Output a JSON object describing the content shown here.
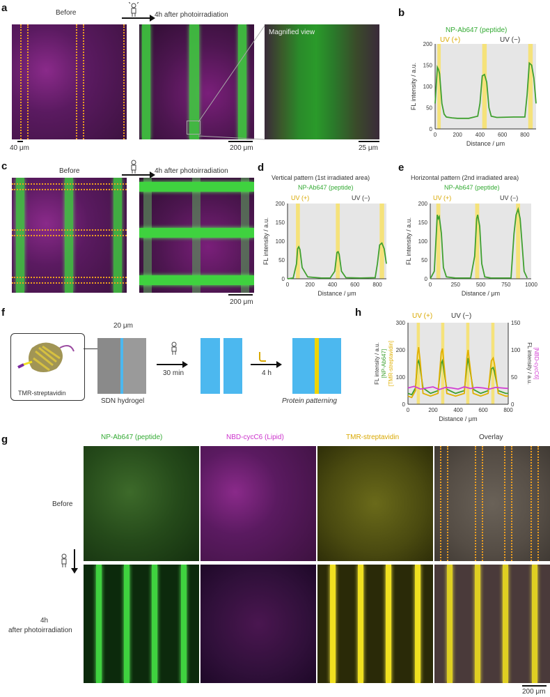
{
  "panels": {
    "a": {
      "label": "a",
      "before": "Before",
      "after": "4h after photoirradiation",
      "magnified": "Magnified view",
      "scale1": "40 μm",
      "scale2": "200 μm",
      "scale3": "25 μm"
    },
    "b": {
      "label": "b",
      "series_title": "NP-Ab647 (peptide)",
      "uv_plus": "UV (+)",
      "uv_minus": "UV (−)",
      "ylabel": "FL intensity / a.u.",
      "xlabel": "Distance / μm"
    },
    "c": {
      "label": "c",
      "before": "Before",
      "after": "4h after photoirradiation",
      "scale": "200 μm"
    },
    "d": {
      "label": "d",
      "title": "Vertical pattern (1st irradiated area)",
      "series_title": "NP-Ab647 (peptide)",
      "uv_plus": "UV (+)",
      "uv_minus": "UV (−)",
      "ylabel": "FL intensity / a.u.",
      "xlabel": "Distance / μm"
    },
    "e": {
      "label": "e",
      "title": "Horizontal pattern (2nd irradiated area)",
      "series_title": "NP-Ab647 (peptide)",
      "uv_plus": "UV (+)",
      "uv_minus": "UV (−)",
      "ylabel": "FL intensity / a.u.",
      "xlabel": "Distance / μm"
    },
    "f": {
      "label": "f",
      "protein": "TMR-streptavidin",
      "width": "20 μm",
      "hydrogel": "SDN hydrogel",
      "time1": "30 min",
      "time2": "4 h",
      "result": "Protein patterning"
    },
    "h": {
      "label": "h",
      "uv_plus": "UV (+)",
      "uv_minus": "UV (−)",
      "ylabel_left": "FL intensity / a.u.",
      "ylabel_left_sub1": "[NP-Ab647]",
      "ylabel_left_sub2": "[TMR-streptavidin]",
      "ylabel_right": "FL intensity / a.u.",
      "ylabel_right_sub": "[NBD-cycC6]",
      "xlabel": "Distance / μm"
    },
    "g": {
      "label": "g",
      "col1": "NP-Ab647 (peptide)",
      "col2": "NBD-cycC6 (Lipid)",
      "col3": "TMR-streptavidin",
      "col4": "Overlay",
      "row1": "Before",
      "row2a": "4h",
      "row2b": "after photoirradiation",
      "scale": "200 μm"
    }
  },
  "colors": {
    "green": "#3fa02f",
    "uv_band": "#f5e27a",
    "shade": "#e6e6e6",
    "yellow": "#e0b000",
    "magenta": "#d23cd2",
    "blue_gel": "#4cb8ef"
  },
  "chart_data": [
    {
      "panel": "b",
      "type": "line",
      "series": [
        {
          "name": "NP-Ab647 (peptide)",
          "x": [
            0,
            20,
            30,
            40,
            60,
            80,
            100,
            150,
            200,
            300,
            380,
            400,
            420,
            440,
            460,
            480,
            500,
            550,
            700,
            800,
            820,
            840,
            860,
            880,
            900
          ],
          "y": [
            60,
            145,
            140,
            130,
            60,
            35,
            28,
            26,
            25,
            25,
            30,
            60,
            125,
            128,
            110,
            50,
            30,
            27,
            28,
            28,
            80,
            155,
            150,
            120,
            60
          ]
        }
      ],
      "xlim": [
        0,
        900
      ],
      "ylim": [
        0,
        200
      ],
      "xticks": [
        0,
        200,
        400,
        600,
        800
      ],
      "yticks": [
        0,
        50,
        100,
        150,
        200
      ],
      "uv_bands": [
        [
          20,
          50
        ],
        [
          420,
          460
        ],
        [
          830,
          870
        ]
      ]
    },
    {
      "panel": "d",
      "type": "line",
      "series": [
        {
          "name": "NP-Ab647 (peptide)",
          "x": [
            0,
            50,
            80,
            90,
            100,
            110,
            130,
            180,
            300,
            380,
            420,
            440,
            450,
            460,
            480,
            520,
            650,
            780,
            800,
            820,
            840,
            860,
            870,
            880
          ],
          "y": [
            0,
            2,
            40,
            80,
            85,
            78,
            30,
            5,
            2,
            2,
            20,
            70,
            72,
            65,
            20,
            3,
            2,
            3,
            40,
            90,
            95,
            80,
            60,
            40
          ]
        }
      ],
      "xlim": [
        0,
        880
      ],
      "ylim": [
        0,
        200
      ],
      "xticks": [
        0,
        200,
        400,
        600,
        800
      ],
      "yticks": [
        0,
        50,
        100,
        150,
        200
      ],
      "uv_bands": [
        [
          75,
          110
        ],
        [
          430,
          465
        ],
        [
          820,
          860
        ]
      ]
    },
    {
      "panel": "e",
      "type": "line",
      "series": [
        {
          "name": "NP-Ab647 (peptide)",
          "x": [
            0,
            40,
            60,
            70,
            80,
            90,
            110,
            130,
            160,
            250,
            400,
            440,
            460,
            470,
            490,
            510,
            540,
            600,
            800,
            830,
            850,
            870,
            890,
            910,
            930,
            960
          ],
          "y": [
            0,
            20,
            120,
            170,
            160,
            165,
            120,
            30,
            5,
            2,
            2,
            60,
            160,
            170,
            140,
            40,
            5,
            2,
            2,
            120,
            170,
            185,
            160,
            90,
            20,
            2
          ]
        }
      ],
      "xlim": [
        0,
        1000
      ],
      "ylim": [
        0,
        200
      ],
      "xticks": [
        0,
        250,
        500,
        750,
        1000
      ],
      "yticks": [
        0,
        50,
        100,
        150,
        200
      ],
      "uv_bands": [
        [
          60,
          100
        ],
        [
          445,
          485
        ],
        [
          850,
          890
        ]
      ]
    },
    {
      "panel": "h",
      "type": "line",
      "xlim": [
        0,
        800
      ],
      "ylim_left": [
        0,
        300
      ],
      "ylim_right": [
        0,
        150
      ],
      "xticks": [
        0,
        200,
        400,
        600,
        800
      ],
      "yticks_left": [
        0,
        100,
        200,
        300
      ],
      "yticks_right": [
        0,
        50,
        100,
        150
      ],
      "uv_bands": [
        [
          70,
          95
        ],
        [
          265,
          290
        ],
        [
          465,
          490
        ],
        [
          665,
          690
        ]
      ],
      "series": [
        {
          "name": "NP-Ab647",
          "axis": "left",
          "x": [
            0,
            30,
            60,
            75,
            85,
            95,
            120,
            180,
            240,
            265,
            275,
            285,
            310,
            380,
            450,
            470,
            480,
            490,
            520,
            580,
            640,
            665,
            680,
            690,
            720,
            780,
            800
          ],
          "y": [
            40,
            35,
            60,
            150,
            160,
            140,
            60,
            40,
            50,
            150,
            160,
            130,
            55,
            40,
            50,
            140,
            170,
            140,
            55,
            40,
            50,
            130,
            135,
            120,
            50,
            40,
            40
          ]
        },
        {
          "name": "TMR-streptavidin",
          "axis": "left",
          "x": [
            0,
            30,
            60,
            75,
            85,
            95,
            120,
            180,
            240,
            265,
            275,
            285,
            310,
            380,
            450,
            470,
            480,
            490,
            520,
            580,
            640,
            665,
            680,
            690,
            720,
            780,
            800
          ],
          "y": [
            30,
            25,
            50,
            180,
            210,
            170,
            40,
            30,
            40,
            190,
            205,
            160,
            40,
            30,
            40,
            170,
            200,
            160,
            40,
            30,
            40,
            160,
            170,
            150,
            40,
            30,
            30
          ]
        },
        {
          "name": "NBD-cycC6",
          "axis": "right",
          "x": [
            0,
            50,
            100,
            150,
            200,
            250,
            300,
            350,
            400,
            450,
            500,
            550,
            600,
            650,
            700,
            750,
            800
          ],
          "y": [
            30,
            33,
            28,
            30,
            32,
            27,
            31,
            30,
            28,
            32,
            29,
            31,
            30,
            28,
            31,
            30,
            29
          ]
        }
      ]
    }
  ]
}
